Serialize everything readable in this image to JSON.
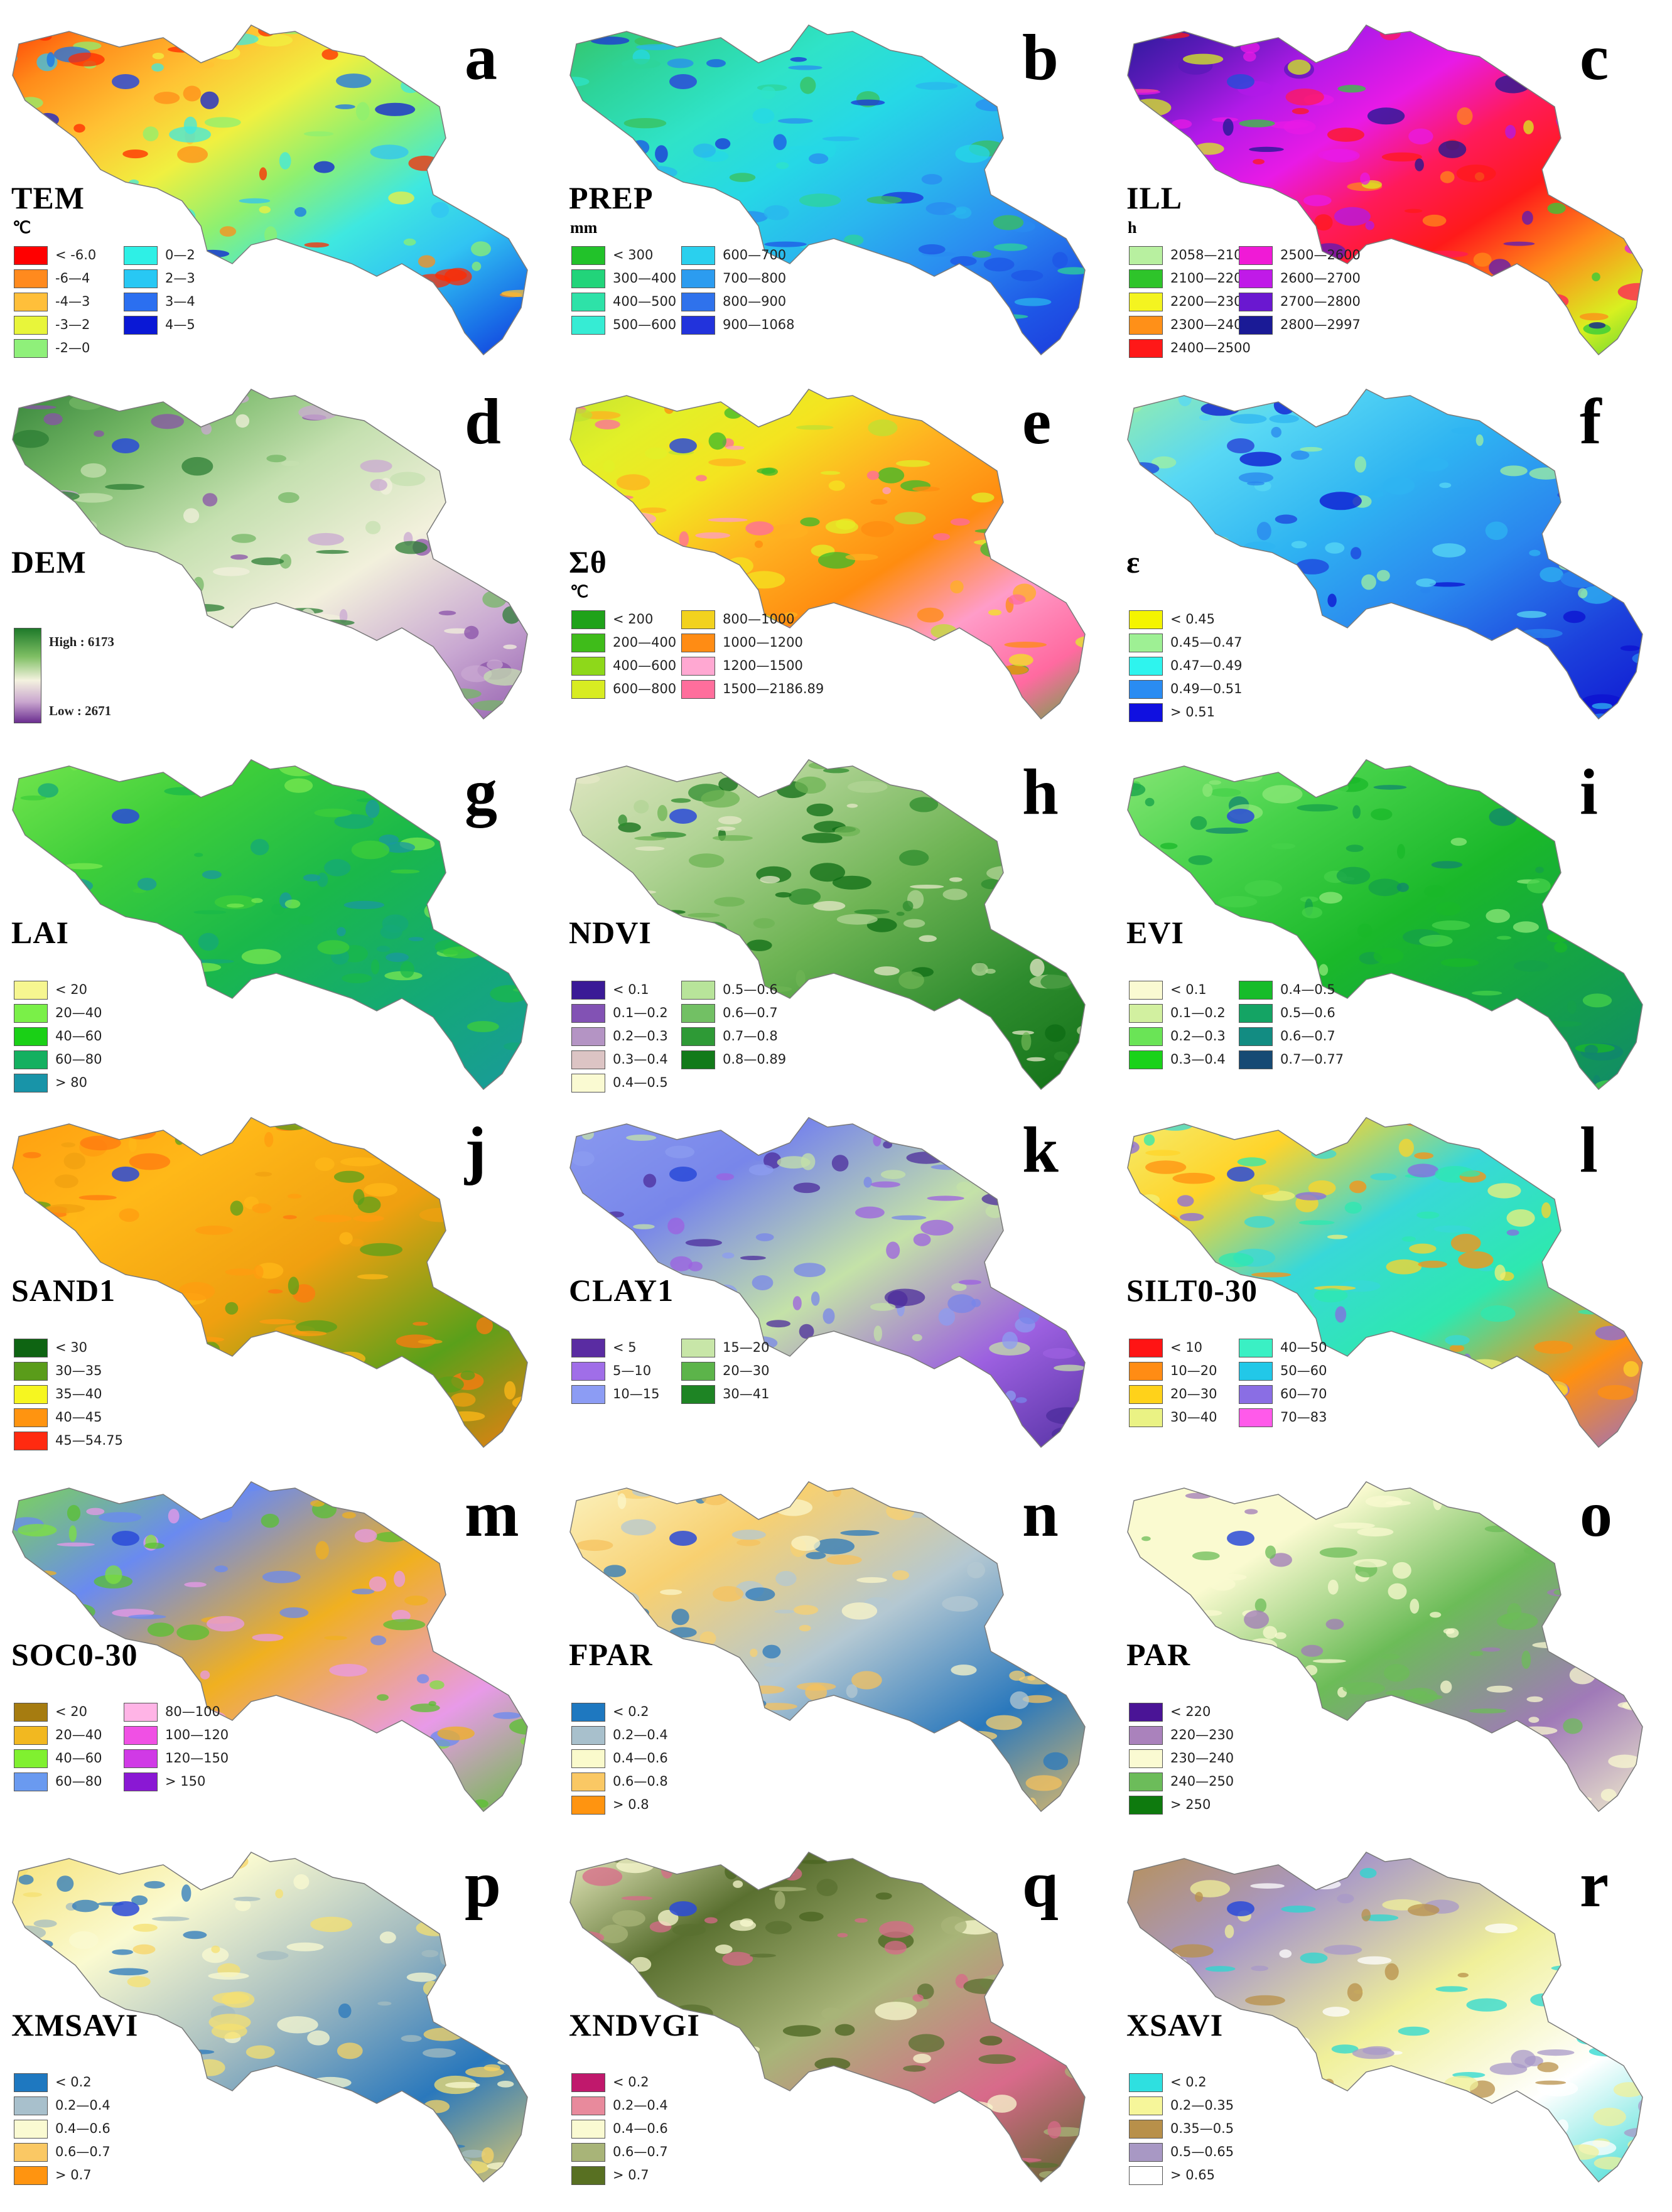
{
  "panels": [
    {
      "letter": "a",
      "title": "TEM",
      "unit": "℃",
      "palette": [
        "#ff2a00",
        "#ff8c1a",
        "#ffc133",
        "#f0f040",
        "#8ef070",
        "#3fe8e0",
        "#31c4f2",
        "#1a73e8",
        "#0e1fd6"
      ],
      "legend": [
        [
          "#ff0000",
          "< -6.0"
        ],
        [
          "#ff8a1e",
          "-6--4"
        ],
        [
          "#ffbf3a",
          "-4--3"
        ],
        [
          "#e8f53a",
          "-3--2"
        ],
        [
          "#8ff07a",
          "-2--0"
        ],
        [
          "#2ef0e6",
          "0--2"
        ],
        [
          "#28c8f4",
          "2--3"
        ],
        [
          "#2b6ff0",
          "3--4"
        ],
        [
          "#0a18d6",
          "4--5"
        ]
      ]
    },
    {
      "letter": "b",
      "title": "PREP",
      "unit": "mm",
      "palette": [
        "#3ac05a",
        "#2dd49a",
        "#2fe3c8",
        "#26d8e6",
        "#2ab5ee",
        "#2a8bf0",
        "#1e55e6",
        "#1c30d8"
      ],
      "legend": [
        [
          "#22c22a",
          "< 300"
        ],
        [
          "#22d47a",
          "300--400"
        ],
        [
          "#2ee2a8",
          "400--500"
        ],
        [
          "#36ecd4",
          "500--600"
        ],
        [
          "#2ad0ee",
          "600--700"
        ],
        [
          "#2c9cf0",
          "700--800"
        ],
        [
          "#2f72ec",
          "800--900"
        ],
        [
          "#2233dc",
          "900--1068"
        ]
      ]
    },
    {
      "letter": "c",
      "title": "ILL",
      "unit": "h",
      "palette": [
        "#1a1a90",
        "#5a1ab8",
        "#b21ae8",
        "#e81ae6",
        "#ff1a5a",
        "#ff1a1a",
        "#ff8a1a",
        "#d8f020",
        "#30cc3a"
      ],
      "legend": [
        [
          "#b8f0a0",
          "2058--2100"
        ],
        [
          "#2ec42a",
          "2100--2200"
        ],
        [
          "#f4f420",
          "2200--2300"
        ],
        [
          "#ff9018",
          "2300--2400"
        ],
        [
          "#ff1818",
          "2400--2500"
        ],
        [
          "#f01ad6",
          "2500--2600"
        ],
        [
          "#c01ae8",
          "2600--2700"
        ],
        [
          "#6a18d0",
          "2700--2800"
        ],
        [
          "#1a1a96",
          "2800--2997"
        ]
      ]
    },
    {
      "letter": "d",
      "title": "DEM",
      "unit": "",
      "palette": [
        "#2c7d34",
        "#74b765",
        "#c5e0b0",
        "#f2f0dc",
        "#c9a8d2",
        "#8a52a8"
      ],
      "dem": {
        "high": "High : 6173",
        "low": "Low : 2671"
      }
    },
    {
      "letter": "e",
      "title": "Σθ",
      "unit": "℃",
      "palette": [
        "#bde032",
        "#e2f028",
        "#f4e420",
        "#ffb020",
        "#ff8c10",
        "#ff9cc8",
        "#ff6aa0",
        "#39b92a"
      ],
      "legend": [
        [
          "#1fa21a",
          "< 200"
        ],
        [
          "#3fbc1a",
          "200--400"
        ],
        [
          "#8ed81a",
          "400--600"
        ],
        [
          "#d8ec22",
          "600--800"
        ],
        [
          "#f2d21e",
          "800--1000"
        ],
        [
          "#ff8c14",
          "1000--1200"
        ],
        [
          "#ffa8d2",
          "1200--1500"
        ],
        [
          "#ff6e9c",
          "1500--2186.89"
        ]
      ]
    },
    {
      "letter": "f",
      "title": "ε",
      "unit": "",
      "palette": [
        "#a0f0a0",
        "#58d8f4",
        "#2fb4f2",
        "#2a86ee",
        "#1c40dc",
        "#0c10d0"
      ],
      "legend": [
        [
          "#f4f400",
          "< 0.45"
        ],
        [
          "#9ef094",
          "0.45--0.47"
        ],
        [
          "#2ef4ee",
          "0.47--0.49"
        ],
        [
          "#2a8cf2",
          "0.49--0.51"
        ],
        [
          "#1010e0",
          "> 0.51"
        ]
      ]
    },
    {
      "letter": "g",
      "title": "LAI",
      "unit": "",
      "palette": [
        "#7ae850",
        "#3ece3a",
        "#1ab84a",
        "#14a878",
        "#1a98a0"
      ],
      "legend": [
        [
          "#f6f690",
          "< 20"
        ],
        [
          "#7af048",
          "20--40"
        ],
        [
          "#1ad016",
          "40--60"
        ],
        [
          "#14b060",
          "60--80"
        ],
        [
          "#1894a8",
          "> 80"
        ]
      ]
    },
    {
      "letter": "h",
      "title": "NDVI",
      "unit": "",
      "palette": [
        "#e6e8c8",
        "#b2d496",
        "#6eb454",
        "#2e8c2e",
        "#0e6c14"
      ],
      "legend": [
        [
          "#3a1a96",
          "< 0.1"
        ],
        [
          "#8252b4",
          "0.1--0.2"
        ],
        [
          "#b494c4",
          "0.2--0.3"
        ],
        [
          "#dcc4c4",
          "0.3--0.4"
        ],
        [
          "#fafad2",
          "0.4--0.5"
        ],
        [
          "#b8e49a",
          "0.5--0.6"
        ],
        [
          "#72c064",
          "0.6--0.7"
        ],
        [
          "#2e9a36",
          "0.7--0.8"
        ],
        [
          "#127a1a",
          "0.8--0.89"
        ]
      ]
    },
    {
      "letter": "i",
      "title": "EVI",
      "unit": "",
      "palette": [
        "#8ee87a",
        "#46d24a",
        "#1ab82a",
        "#14a04a",
        "#10866e"
      ],
      "legend": [
        [
          "#fafad2",
          "< 0.1"
        ],
        [
          "#d2f0a0",
          "0.1--0.2"
        ],
        [
          "#6ae456",
          "0.2--0.3"
        ],
        [
          "#1ad21a",
          "0.3--0.4"
        ],
        [
          "#16bc2a",
          "0.4--0.5"
        ],
        [
          "#14a464",
          "0.5--0.6"
        ],
        [
          "#128c82",
          "0.6--0.7"
        ],
        [
          "#164a74",
          "0.7--0.77"
        ]
      ]
    },
    {
      "letter": "j",
      "title": "SAND1",
      "unit": "",
      "palette": [
        "#ff9c10",
        "#ffb818",
        "#f0a010",
        "#5aa01a",
        "#ff7a10"
      ],
      "legend": [
        [
          "#0e6412",
          "< 30"
        ],
        [
          "#5a9c1a",
          "30--35"
        ],
        [
          "#f6f620",
          "35--40"
        ],
        [
          "#ff9410",
          "40--45"
        ],
        [
          "#ff2a10",
          "45--54.75"
        ]
      ]
    },
    {
      "letter": "k",
      "title": "CLAY1",
      "unit": "",
      "palette": [
        "#8c9cf0",
        "#7886ea",
        "#c4e2a8",
        "#9c60e0",
        "#4c2c9c"
      ],
      "legend": [
        [
          "#5a2ca2",
          "< 5"
        ],
        [
          "#a06ee8",
          "5--10"
        ],
        [
          "#8c9cf4",
          "10--15"
        ],
        [
          "#c8e6a8",
          "15--20"
        ],
        [
          "#5cb44a",
          "20--30"
        ],
        [
          "#1e8424",
          "30--41"
        ]
      ]
    },
    {
      "letter": "l",
      "title": "SILT0-30",
      "unit": "",
      "palette": [
        "#f2f07a",
        "#ffd42a",
        "#38d8d8",
        "#2ee8b0",
        "#ff9010",
        "#8a6ae0"
      ],
      "legend": [
        [
          "#ff1414",
          "< 10"
        ],
        [
          "#ff8c14",
          "10--20"
        ],
        [
          "#ffd21a",
          "20--30"
        ],
        [
          "#eaf284",
          "30--40"
        ],
        [
          "#3af0c4",
          "40--50"
        ],
        [
          "#22c8e8",
          "50--60"
        ],
        [
          "#8a6ee4",
          "60--70"
        ],
        [
          "#ff5aea",
          "70--83"
        ]
      ]
    },
    {
      "letter": "m",
      "title": "SOC0-30",
      "unit": "",
      "palette": [
        "#7ee040",
        "#6a8af0",
        "#f0b020",
        "#e89ae8",
        "#5ac030"
      ],
      "legend": [
        [
          "#a67c10",
          "< 20"
        ],
        [
          "#f2b820",
          "20--40"
        ],
        [
          "#80f030",
          "40--60"
        ],
        [
          "#6a9af0",
          "60--80"
        ],
        [
          "#ffb4e6",
          "80--100"
        ],
        [
          "#f050e4",
          "100--120"
        ],
        [
          "#d03ae6",
          "120--150"
        ],
        [
          "#8a18d4",
          "> 150"
        ]
      ]
    },
    {
      "letter": "n",
      "title": "FPAR",
      "unit": "",
      "palette": [
        "#fbf6c8",
        "#f8d070",
        "#b4c8d2",
        "#2a78bc",
        "#f6c25e"
      ],
      "legend": [
        [
          "#1e78c0",
          "< 0.2"
        ],
        [
          "#a8c0cc",
          "0.2--0.4"
        ],
        [
          "#fafacc",
          "0.4--0.6"
        ],
        [
          "#fac864",
          "0.6--0.8"
        ],
        [
          "#ff9410",
          "> 0.8"
        ]
      ]
    },
    {
      "letter": "o",
      "title": "PAR",
      "unit": "",
      "palette": [
        "#fafad0",
        "#fafad0",
        "#6cbc58",
        "#a07ab8",
        "#fafad0"
      ],
      "legend": [
        [
          "#4a1496",
          "< 220"
        ],
        [
          "#aa82bc",
          "220--230"
        ],
        [
          "#fafad2",
          "230--240"
        ],
        [
          "#6cbc5a",
          "240--250"
        ],
        [
          "#0e7a0e",
          "> 250"
        ]
      ]
    },
    {
      "letter": "p",
      "title": "XMSAVI",
      "unit": "",
      "palette": [
        "#f6e070",
        "#fafad0",
        "#a4bcc0",
        "#2a78bc",
        "#f8d464"
      ],
      "legend": [
        [
          "#1e78c0",
          "< 0.2"
        ],
        [
          "#a8c0cc",
          "0.2--0.4"
        ],
        [
          "#fafad2",
          "0.4--0.6"
        ],
        [
          "#fac864",
          "0.6--0.7"
        ],
        [
          "#ff9410",
          "> 0.7"
        ]
      ]
    },
    {
      "letter": "q",
      "title": "XNDVGI",
      "unit": "",
      "palette": [
        "#fafad0",
        "#5a7030",
        "#a8b478",
        "#d86a8a",
        "#4a6420"
      ],
      "legend": [
        [
          "#c0186c",
          "< 0.2"
        ],
        [
          "#e88a9c",
          "0.2--0.4"
        ],
        [
          "#fafad2",
          "0.4--0.6"
        ],
        [
          "#a8b478",
          "0.6--0.7"
        ],
        [
          "#587022",
          "> 0.7"
        ]
      ]
    },
    {
      "letter": "r",
      "title": "XSAVI",
      "unit": "",
      "palette": [
        "#b8904a",
        "#a898c8",
        "#f0f09a",
        "#ffffff",
        "#2ad8d0"
      ],
      "legend": [
        [
          "#2ee0e0",
          "< 0.2"
        ],
        [
          "#f6f69a",
          "0.2--0.35"
        ],
        [
          "#b8904a",
          "0.35--0.5"
        ],
        [
          "#a898c4",
          "0.5--0.65"
        ],
        [
          "#ffffff",
          "> 0.65"
        ]
      ]
    }
  ]
}
